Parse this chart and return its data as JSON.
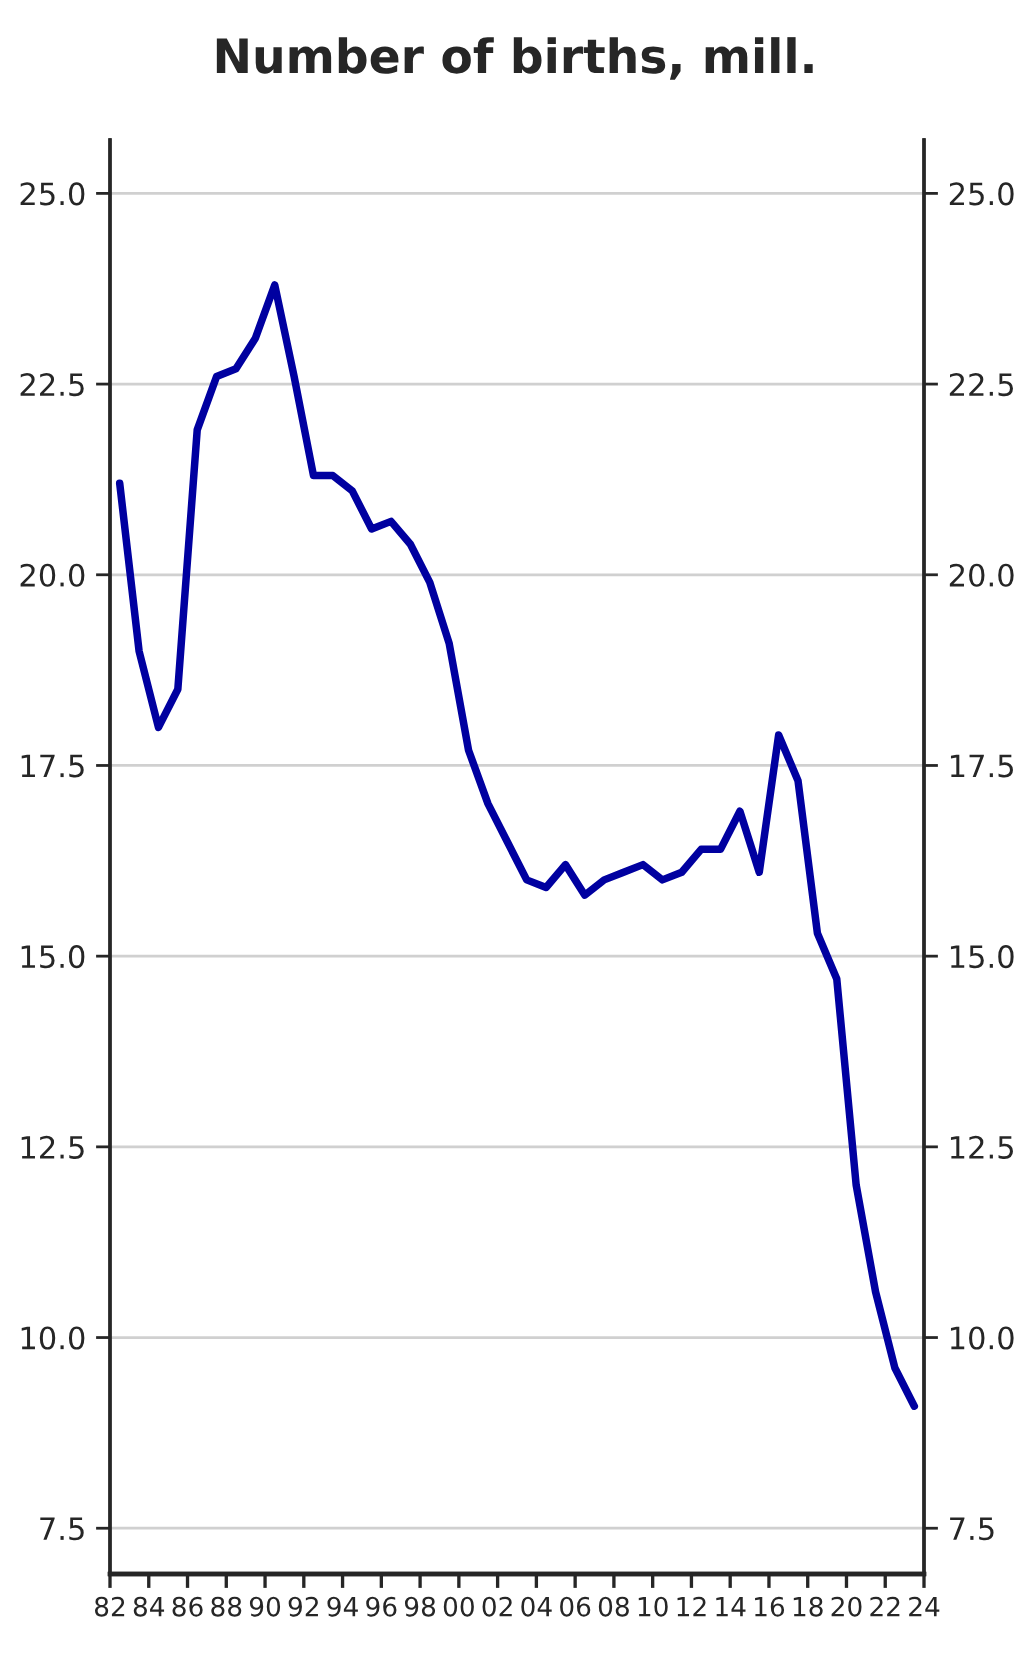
{
  "chart_data": {
    "type": "line",
    "title": "Number of births, mill.",
    "x": [
      1982.5,
      1983.5,
      1984.5,
      1985.5,
      1986.5,
      1987.5,
      1988.5,
      1989.5,
      1990.5,
      1991.5,
      1992.5,
      1993.5,
      1994.5,
      1995.5,
      1996.5,
      1997.5,
      1998.5,
      1999.5,
      2000.5,
      2001.5,
      2002.5,
      2003.5,
      2004.5,
      2005.5,
      2006.5,
      2007.5,
      2008.5,
      2009.5,
      2010.5,
      2011.5,
      2012.5,
      2013.5,
      2014.5,
      2015.5,
      2016.5,
      2017.5,
      2018.5,
      2019.5,
      2020.5,
      2021.5,
      2022.5,
      2023.5
    ],
    "series": [
      {
        "color": "#0000a0",
        "values": [
          21.2,
          19.0,
          18.0,
          18.5,
          21.9,
          22.6,
          22.7,
          23.1,
          23.8,
          22.6,
          21.3,
          21.3,
          21.1,
          20.6,
          20.7,
          20.4,
          19.9,
          19.1,
          17.7,
          17.0,
          16.5,
          16.0,
          15.9,
          16.2,
          15.8,
          16.0,
          16.1,
          16.2,
          16.0,
          16.1,
          16.4,
          16.4,
          16.9,
          16.1,
          17.9,
          17.3,
          15.3,
          14.7,
          12.0,
          10.6,
          9.6,
          9.1
        ]
      }
    ],
    "xlim": [
      1982,
      2024
    ],
    "xticks": [
      {
        "value": 1982,
        "label": "82"
      },
      {
        "value": 1984,
        "label": "84"
      },
      {
        "value": 1986,
        "label": "86"
      },
      {
        "value": 1988,
        "label": "88"
      },
      {
        "value": 1990,
        "label": "90"
      },
      {
        "value": 1992,
        "label": "92"
      },
      {
        "value": 1994,
        "label": "94"
      },
      {
        "value": 1996,
        "label": "96"
      },
      {
        "value": 1998,
        "label": "98"
      },
      {
        "value": 2000,
        "label": "00"
      },
      {
        "value": 2002,
        "label": "02"
      },
      {
        "value": 2004,
        "label": "04"
      },
      {
        "value": 2006,
        "label": "06"
      },
      {
        "value": 2008,
        "label": "08"
      },
      {
        "value": 2010,
        "label": "10"
      },
      {
        "value": 2012,
        "label": "12"
      },
      {
        "value": 2014,
        "label": "14"
      },
      {
        "value": 2016,
        "label": "16"
      },
      {
        "value": 2018,
        "label": "18"
      },
      {
        "value": 2020,
        "label": "20"
      },
      {
        "value": 2022,
        "label": "22"
      },
      {
        "value": 2024,
        "label": "24"
      }
    ],
    "ylim": [
      6.9,
      25.7
    ],
    "yticks": [
      {
        "value": 7.5,
        "label": "7.5"
      },
      {
        "value": 10,
        "label": "10.0"
      },
      {
        "value": 12.5,
        "label": "12.5"
      },
      {
        "value": 15,
        "label": "15.0"
      },
      {
        "value": 17.5,
        "label": "17.5"
      },
      {
        "value": 20,
        "label": "20.0"
      },
      {
        "value": 22.5,
        "label": "22.5"
      },
      {
        "value": 25,
        "label": "25.0"
      }
    ],
    "y2lim": [
      6.9,
      25.7
    ],
    "y2ticks": [
      {
        "value": 7.5,
        "label": "7.5"
      },
      {
        "value": 10,
        "label": "10.0"
      },
      {
        "value": 12.5,
        "label": "12.5"
      },
      {
        "value": 15,
        "label": "15.0"
      },
      {
        "value": 17.5,
        "label": "17.5"
      },
      {
        "value": 20,
        "label": "20.0"
      },
      {
        "value": 22.5,
        "label": "22.5"
      },
      {
        "value": 25,
        "label": "25.0"
      }
    ],
    "grid": "y",
    "legend": false,
    "marker": "none",
    "line_style": "solid"
  }
}
